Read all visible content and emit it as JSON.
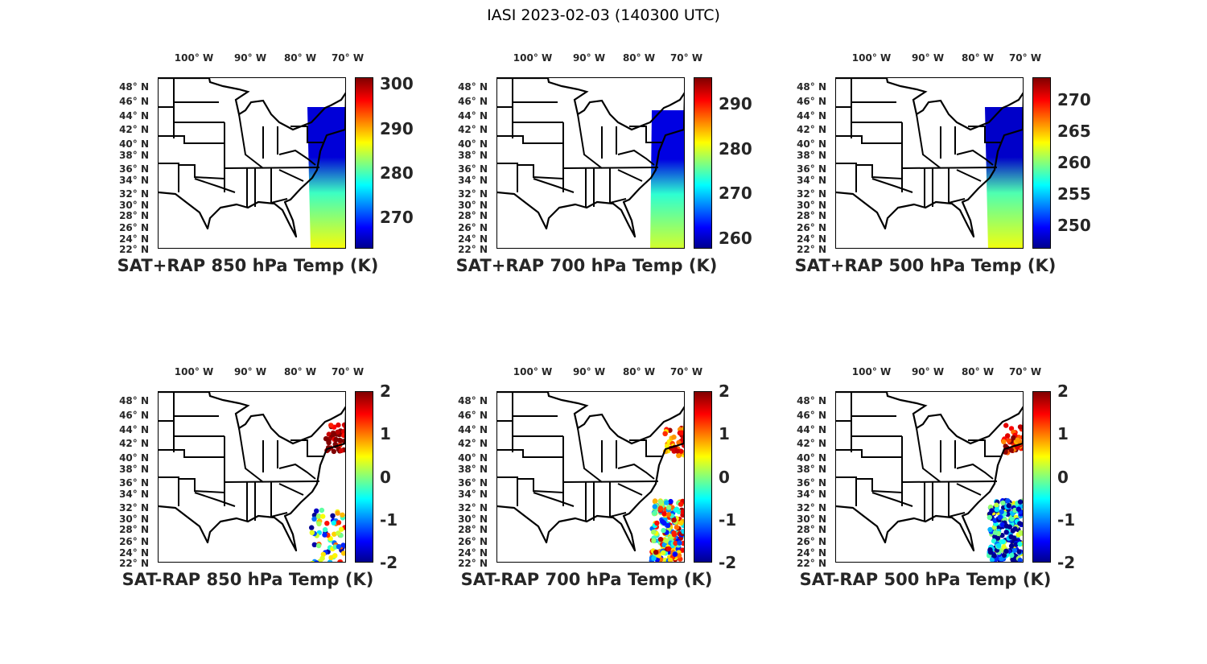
{
  "figure_title": "IASI 2023-02-03 (140300 UTC)",
  "lon_labels": [
    "100° W",
    "90° W",
    "80° W",
    "70° W"
  ],
  "lat_labels": [
    "48° N",
    "46° N",
    "44° N",
    "42° N",
    "40° N",
    "38° N",
    "36° N",
    "34° N",
    "32° N",
    "30° N",
    "28° N",
    "26° N",
    "24° N",
    "22° N"
  ],
  "colors": {
    "jet": [
      "#00008f",
      "#0000ff",
      "#00ffff",
      "#ffff00",
      "#ff0000",
      "#800000"
    ]
  },
  "panels": [
    {
      "title": "SAT+RAP 850 hPa Temp (K)",
      "kind": "sum",
      "clim": [
        263,
        301.5
      ],
      "ticks": [
        270,
        280,
        290,
        300
      ],
      "tick_labels": [
        "270",
        "280",
        "290",
        "300"
      ],
      "swath_top_value": 266,
      "swath_bottom_value": 287
    },
    {
      "title": "SAT+RAP 700 hPa Temp (K)",
      "kind": "sum",
      "clim": [
        257.6,
        296
      ],
      "ticks": [
        260,
        270,
        280,
        290
      ],
      "tick_labels": [
        "260",
        "270",
        "280",
        "290"
      ],
      "swath_top_value": 261,
      "swath_bottom_value": 280
    },
    {
      "title": "SAT+RAP 500 hPa Temp (K)",
      "kind": "sum",
      "clim": [
        246.3,
        273.6
      ],
      "ticks": [
        250,
        255,
        260,
        265,
        270
      ],
      "tick_labels": [
        "250",
        "255",
        "260",
        "265",
        "270"
      ],
      "swath_top_value": 248,
      "swath_bottom_value": 263
    },
    {
      "title": "SAT-RAP 850 hPa Temp (K)",
      "kind": "diff",
      "clim": [
        -2,
        2
      ],
      "ticks": [
        -2,
        -1,
        0,
        1,
        2
      ],
      "tick_labels": [
        "-2",
        "-1",
        "0",
        "1",
        "2"
      ],
      "north_mean": 2,
      "south_mean": -0.3
    },
    {
      "title": "SAT-RAP 700 hPa Temp (K)",
      "kind": "diff",
      "clim": [
        -2,
        2
      ],
      "ticks": [
        -2,
        -1,
        0,
        1,
        2
      ],
      "tick_labels": [
        "-2",
        "-1",
        "0",
        "1",
        "2"
      ],
      "north_mean": 1.2,
      "south_mean": 0.2
    },
    {
      "title": "SAT-RAP 500 hPa Temp (K)",
      "kind": "diff",
      "clim": [
        -2,
        2
      ],
      "ticks": [
        -2,
        -1,
        0,
        1,
        2
      ],
      "tick_labels": [
        "-2",
        "-1",
        "0",
        "1",
        "2"
      ],
      "north_mean": 1.5,
      "south_mean": -1.2
    }
  ]
}
